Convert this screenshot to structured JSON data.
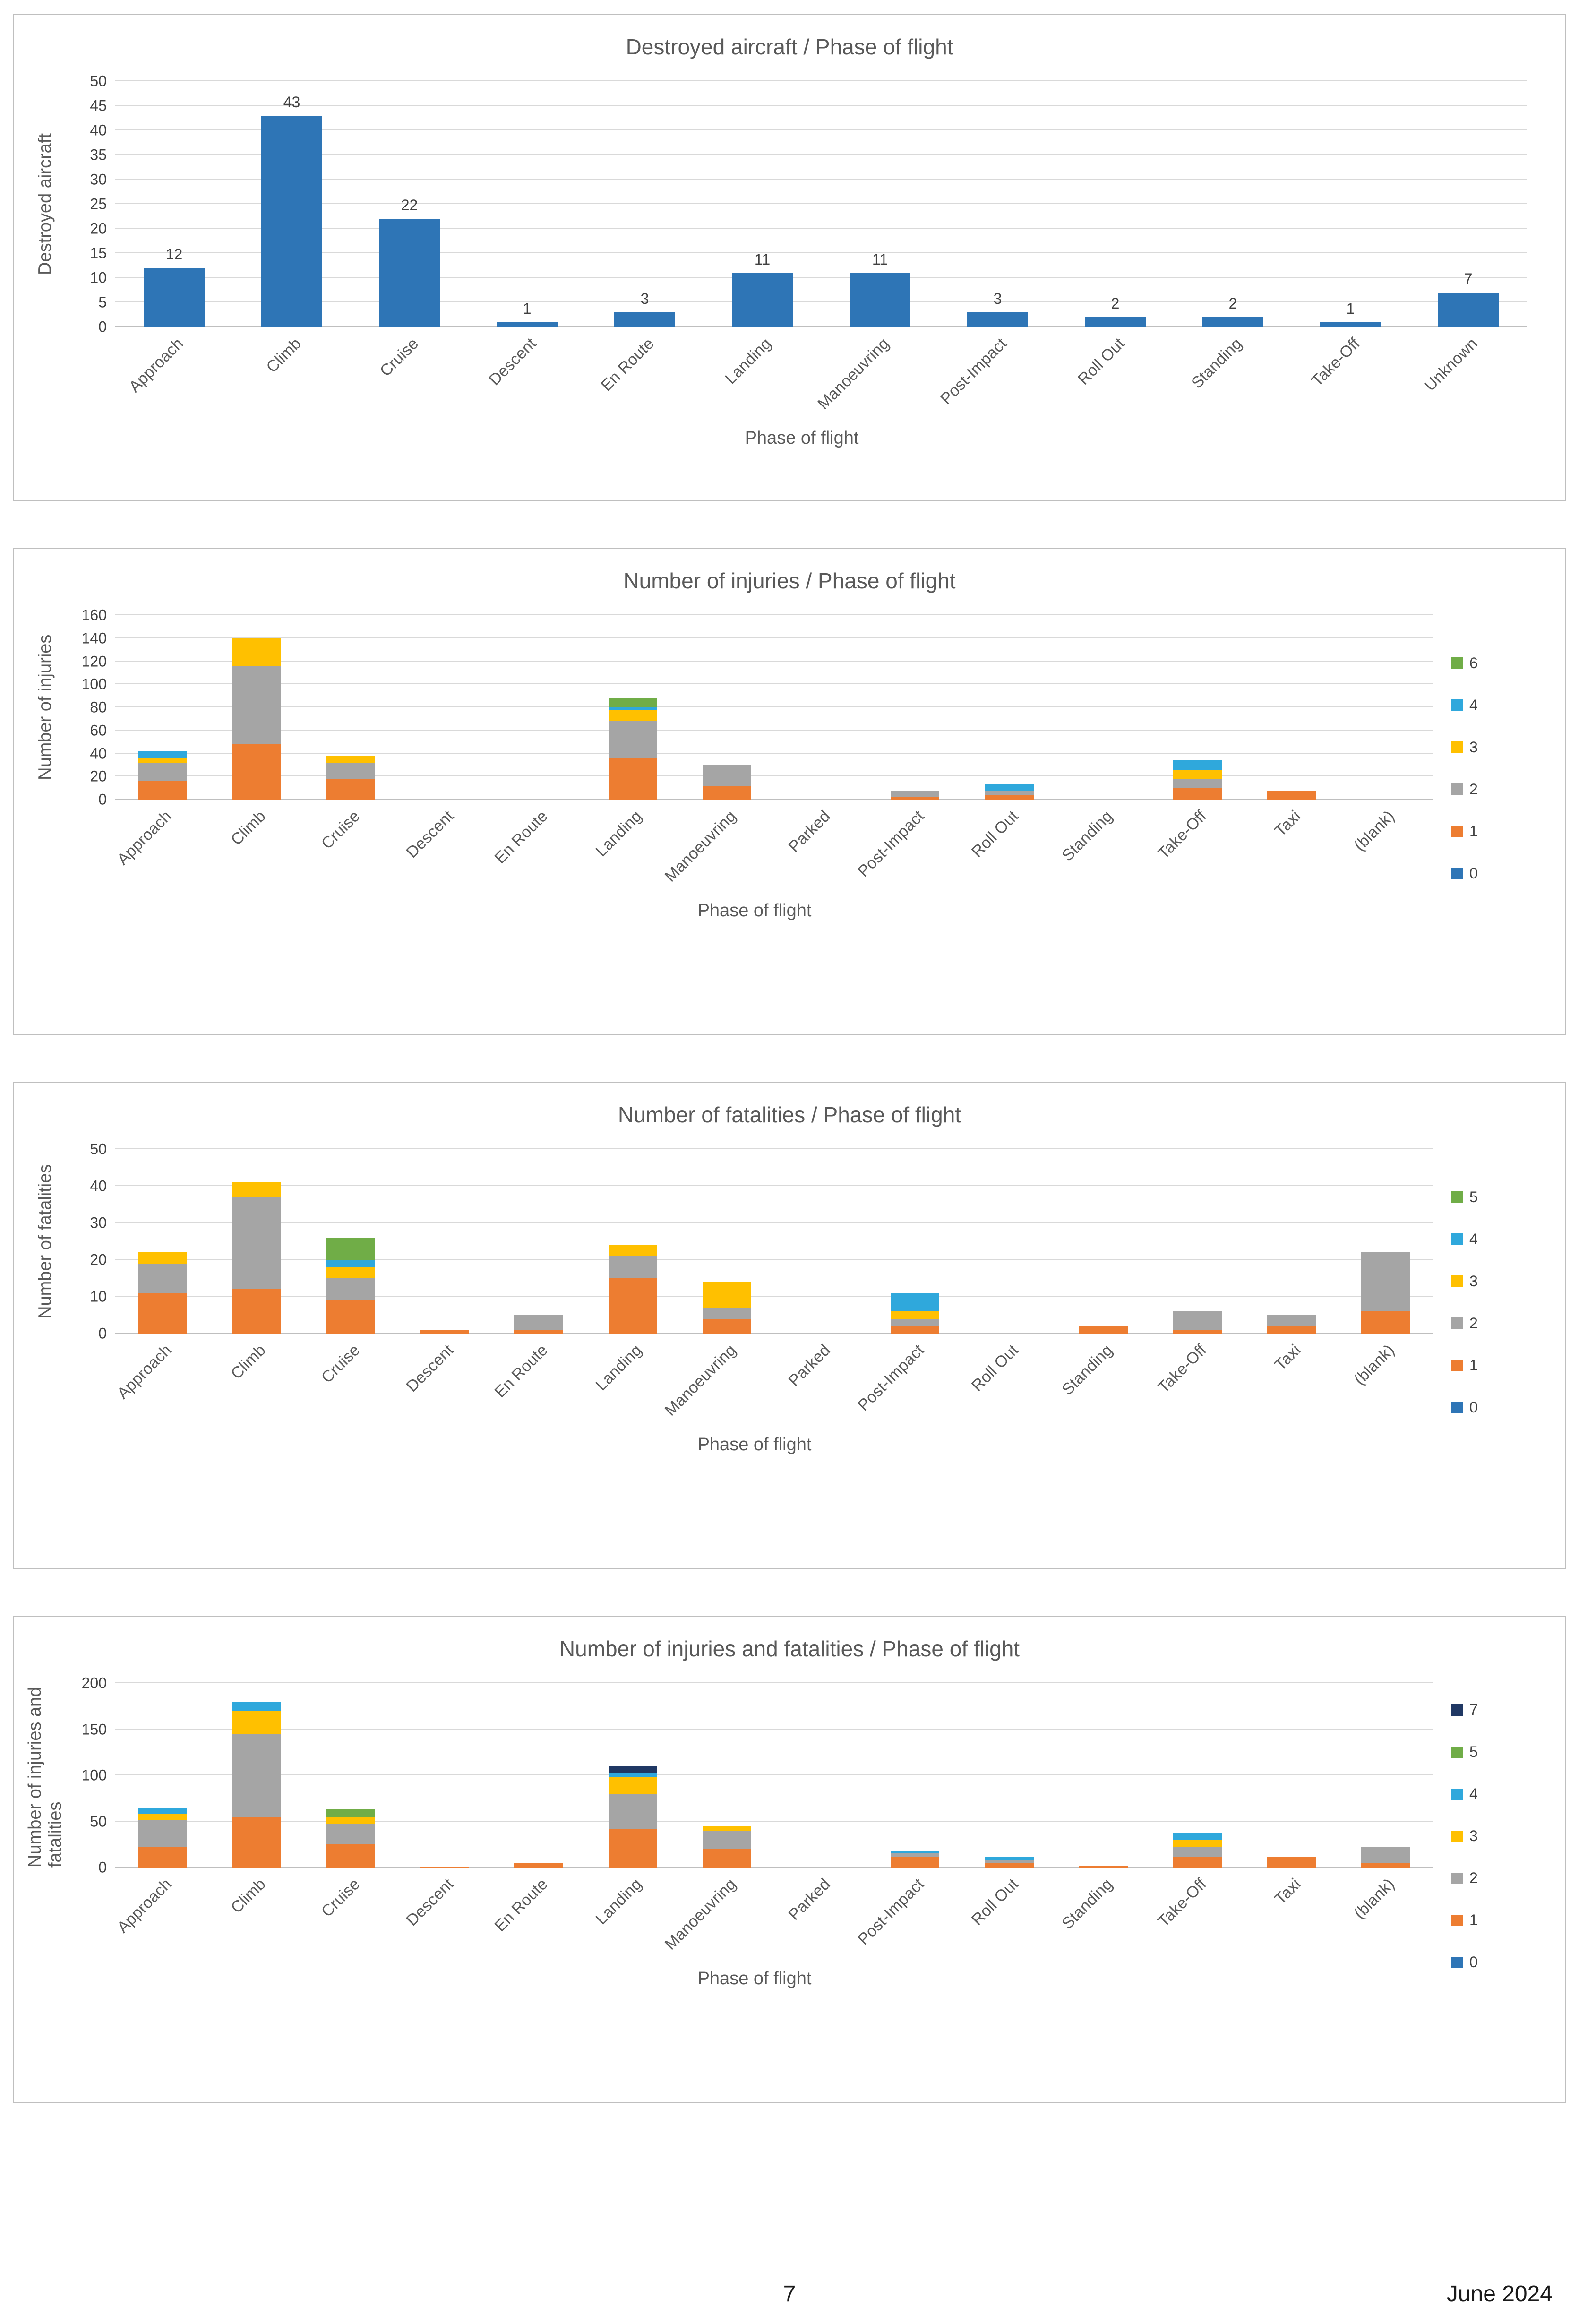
{
  "page": {
    "number": "7",
    "date": "June 2024"
  },
  "chart_data": [
    {
      "type": "bar",
      "title": "Destroyed aircraft / Phase of flight",
      "ylabel": "Destroyed aircraft",
      "xlabel": "Phase of flight",
      "ymax": 50,
      "ytick": 5,
      "bar_color": "#2E75B6",
      "categories": [
        "Approach",
        "Climb",
        "Cruise",
        "Descent",
        "En Route",
        "Landing",
        "Manoeuvring",
        "Post-Impact",
        "Roll Out",
        "Standing",
        "Take-Off",
        "Unknown"
      ],
      "values": [
        12,
        43,
        22,
        1,
        3,
        11,
        11,
        3,
        2,
        2,
        1,
        7
      ]
    },
    {
      "type": "bar",
      "stacked": true,
      "title": "Number of injuries / Phase of flight",
      "ylabel": "Number of injuries",
      "xlabel": "Phase of flight",
      "ymax": 160,
      "ytick": 20,
      "categories": [
        "Approach",
        "Climb",
        "Cruise",
        "Descent",
        "En Route",
        "Landing",
        "Manoeuvring",
        "Parked",
        "Post-Impact",
        "Roll Out",
        "Standing",
        "Take-Off",
        "Taxi",
        "(blank)"
      ],
      "series": [
        {
          "name": "0",
          "color": "#2E75B6",
          "values": [
            0,
            0,
            0,
            0,
            0,
            0,
            0,
            0,
            0,
            0,
            0,
            0,
            0,
            0
          ]
        },
        {
          "name": "1",
          "color": "#ED7D31",
          "values": [
            16,
            48,
            18,
            0,
            0,
            36,
            12,
            0,
            2,
            4,
            0,
            10,
            8,
            0
          ]
        },
        {
          "name": "2",
          "color": "#A5A5A5",
          "values": [
            16,
            68,
            14,
            0,
            0,
            32,
            18,
            0,
            6,
            4,
            0,
            8,
            0,
            0
          ]
        },
        {
          "name": "3",
          "color": "#FFC000",
          "values": [
            4,
            24,
            6,
            0,
            0,
            10,
            0,
            0,
            0,
            0,
            0,
            8,
            0,
            0
          ]
        },
        {
          "name": "4",
          "color": "#2FA8DC",
          "values": [
            6,
            0,
            0,
            0,
            0,
            2,
            0,
            0,
            0,
            5,
            0,
            8,
            0,
            0
          ]
        },
        {
          "name": "6",
          "color": "#70AD47",
          "values": [
            0,
            0,
            0,
            0,
            0,
            8,
            0,
            0,
            0,
            0,
            0,
            0,
            0,
            0
          ]
        }
      ],
      "legend": [
        {
          "label": "6",
          "color": "#70AD47"
        },
        {
          "label": "4",
          "color": "#2FA8DC"
        },
        {
          "label": "3",
          "color": "#FFC000"
        },
        {
          "label": "2",
          "color": "#A5A5A5"
        },
        {
          "label": "1",
          "color": "#ED7D31"
        },
        {
          "label": "0",
          "color": "#2E75B6"
        }
      ]
    },
    {
      "type": "bar",
      "stacked": true,
      "title": "Number of fatalities / Phase of flight",
      "ylabel": "Number of fatalities",
      "xlabel": "Phase of flight",
      "ymax": 50,
      "ytick": 10,
      "categories": [
        "Approach",
        "Climb",
        "Cruise",
        "Descent",
        "En Route",
        "Landing",
        "Manoeuvring",
        "Parked",
        "Post-Impact",
        "Roll Out",
        "Standing",
        "Take-Off",
        "Taxi",
        "(blank)"
      ],
      "series": [
        {
          "name": "0",
          "color": "#2E75B6",
          "values": [
            0,
            0,
            0,
            0,
            0,
            0,
            0,
            0,
            0,
            0,
            0,
            0,
            0,
            0
          ]
        },
        {
          "name": "1",
          "color": "#ED7D31",
          "values": [
            11,
            12,
            9,
            1,
            1,
            15,
            4,
            0,
            2,
            0,
            2,
            1,
            2,
            6
          ]
        },
        {
          "name": "2",
          "color": "#A5A5A5",
          "values": [
            8,
            25,
            6,
            0,
            4,
            6,
            3,
            0,
            2,
            0,
            0,
            5,
            3,
            16
          ]
        },
        {
          "name": "3",
          "color": "#FFC000",
          "values": [
            3,
            4,
            3,
            0,
            0,
            3,
            7,
            0,
            2,
            0,
            0,
            0,
            0,
            0
          ]
        },
        {
          "name": "4",
          "color": "#2FA8DC",
          "values": [
            0,
            0,
            2,
            0,
            0,
            0,
            0,
            0,
            5,
            0,
            0,
            0,
            0,
            0
          ]
        },
        {
          "name": "5",
          "color": "#70AD47",
          "values": [
            0,
            0,
            6,
            0,
            0,
            0,
            0,
            0,
            0,
            0,
            0,
            0,
            0,
            0
          ]
        }
      ],
      "legend": [
        {
          "label": "5",
          "color": "#70AD47"
        },
        {
          "label": "4",
          "color": "#2FA8DC"
        },
        {
          "label": "3",
          "color": "#FFC000"
        },
        {
          "label": "2",
          "color": "#A5A5A5"
        },
        {
          "label": "1",
          "color": "#ED7D31"
        },
        {
          "label": "0",
          "color": "#2E75B6"
        }
      ]
    },
    {
      "type": "bar",
      "stacked": true,
      "title": "Number of injuries and fatalities / Phase of flight",
      "ylabel": "Number of injuries and fatalities",
      "xlabel": "Phase of flight",
      "ymax": 200,
      "ytick": 50,
      "categories": [
        "Approach",
        "Climb",
        "Cruise",
        "Descent",
        "En Route",
        "Landing",
        "Manoeuvring",
        "Parked",
        "Post-Impact",
        "Roll Out",
        "Standing",
        "Take-Off",
        "Taxi",
        "(blank)"
      ],
      "series": [
        {
          "name": "0",
          "color": "#2E75B6",
          "values": [
            0,
            0,
            0,
            0,
            0,
            0,
            0,
            0,
            0,
            0,
            0,
            0,
            0,
            0
          ]
        },
        {
          "name": "1",
          "color": "#ED7D31",
          "values": [
            22,
            55,
            25,
            1,
            5,
            42,
            20,
            0,
            12,
            5,
            2,
            12,
            12,
            5
          ]
        },
        {
          "name": "2",
          "color": "#A5A5A5",
          "values": [
            30,
            90,
            22,
            0,
            0,
            38,
            20,
            0,
            4,
            3,
            0,
            10,
            0,
            17
          ]
        },
        {
          "name": "3",
          "color": "#FFC000",
          "values": [
            6,
            25,
            8,
            0,
            0,
            18,
            5,
            0,
            0,
            0,
            0,
            8,
            0,
            0
          ]
        },
        {
          "name": "4",
          "color": "#2FA8DC",
          "values": [
            6,
            10,
            0,
            0,
            0,
            4,
            0,
            0,
            2,
            4,
            0,
            8,
            0,
            0
          ]
        },
        {
          "name": "5",
          "color": "#70AD47",
          "values": [
            0,
            0,
            8,
            0,
            0,
            0,
            0,
            0,
            0,
            0,
            0,
            0,
            0,
            0
          ]
        },
        {
          "name": "7",
          "color": "#203864",
          "values": [
            0,
            0,
            0,
            0,
            0,
            8,
            0,
            0,
            0,
            0,
            0,
            0,
            0,
            0
          ]
        }
      ],
      "legend": [
        {
          "label": "7",
          "color": "#203864"
        },
        {
          "label": "5",
          "color": "#70AD47"
        },
        {
          "label": "4",
          "color": "#2FA8DC"
        },
        {
          "label": "3",
          "color": "#FFC000"
        },
        {
          "label": "2",
          "color": "#A5A5A5"
        },
        {
          "label": "1",
          "color": "#ED7D31"
        },
        {
          "label": "0",
          "color": "#2E75B6"
        }
      ]
    }
  ]
}
